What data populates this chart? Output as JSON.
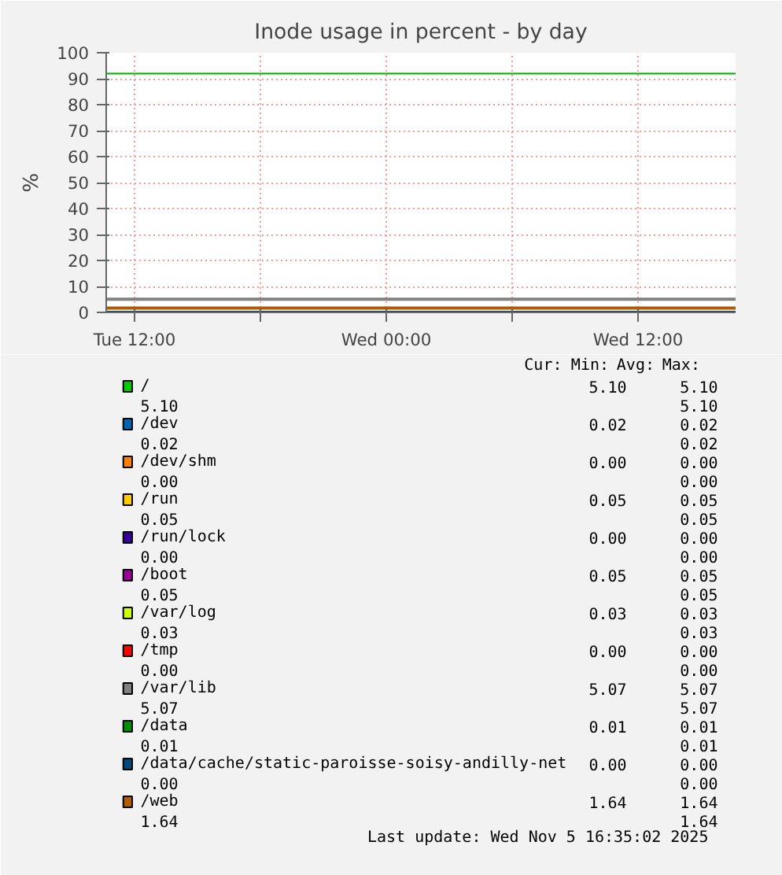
{
  "chart_data": {
    "type": "line",
    "title": "Inode usage in percent - by day",
    "ylabel": "%",
    "x": [
      "2025-11-04T10:39",
      "2025-11-05T16:39"
    ],
    "xlim": [
      "2025-11-04T10:39",
      "2025-11-05T16:39"
    ],
    "xticks": [
      {
        "value": "2025-11-04T12:00",
        "label": "Tue 12:00"
      },
      {
        "value": "2025-11-04T18:00",
        "label": null
      },
      {
        "value": "2025-11-05T00:00",
        "label": "Wed 00:00"
      },
      {
        "value": "2025-11-05T06:00",
        "label": null
      },
      {
        "value": "2025-11-05T12:00",
        "label": "Wed 12:00"
      }
    ],
    "ylim": [
      0,
      100
    ],
    "yticks": [
      0,
      10,
      20,
      30,
      40,
      50,
      60,
      70,
      80,
      90,
      100
    ],
    "grid": true,
    "legend": "bottom",
    "ref_lines": [
      {
        "axis": "y",
        "value": 92,
        "color": "#00aa00"
      }
    ],
    "series": [
      {
        "name": "/",
        "color": "#00cc00",
        "values": [
          null,
          null
        ]
      },
      {
        "name": "/dev",
        "color": "#0066b3",
        "values": [
          null,
          null
        ]
      },
      {
        "name": "/dev/shm",
        "color": "#ff8000",
        "values": [
          null,
          null
        ]
      },
      {
        "name": "/run",
        "color": "#ffcc00",
        "values": [
          null,
          null
        ]
      },
      {
        "name": "/run/lock",
        "color": "#330099",
        "values": [
          null,
          null
        ]
      },
      {
        "name": "/boot",
        "color": "#990099",
        "values": [
          null,
          null
        ]
      },
      {
        "name": "/var/log",
        "color": "#ccff00",
        "values": [
          null,
          null
        ]
      },
      {
        "name": "/tmp",
        "color": "#ff0000",
        "values": [
          null,
          null
        ]
      },
      {
        "name": "/var/lib",
        "color": "#808080",
        "values": [
          5.07,
          5.07
        ]
      },
      {
        "name": "/data",
        "color": "#008f00",
        "values": [
          null,
          null
        ]
      },
      {
        "name": "/data/cache/static-paroisse-soisy-andilly-net",
        "color": "#00487d",
        "values": [
          0.0,
          0.0
        ]
      },
      {
        "name": "/web",
        "color": "#b35a00",
        "values": [
          1.64,
          1.64
        ]
      }
    ],
    "annotations": [
      "Cur:",
      "Min:",
      "Avg:",
      "Max:",
      "5.10",
      "5.10",
      "5.10",
      "5.10",
      "0.02",
      "0.02",
      "0.02",
      "0.02",
      "0.00",
      "0.00",
      "0.00",
      "0.00",
      "0.05",
      "0.05",
      "0.05",
      "0.05",
      "0.00",
      "0.00",
      "0.00",
      "0.00",
      "0.05",
      "0.05",
      "0.05",
      "0.05",
      "0.03",
      "0.03",
      "0.03",
      "0.03",
      "0.00",
      "0.00",
      "0.00",
      "0.00",
      "5.07",
      "5.07",
      "5.07",
      "5.07",
      "0.01",
      "0.01",
      "0.01",
      "0.01",
      "0.00",
      "0.00",
      "0.00",
      "0.00",
      "1.64",
      "1.64",
      "1.64",
      "1.64",
      "Last update: Wed Nov  5 16:35:02 2025"
    ]
  }
}
